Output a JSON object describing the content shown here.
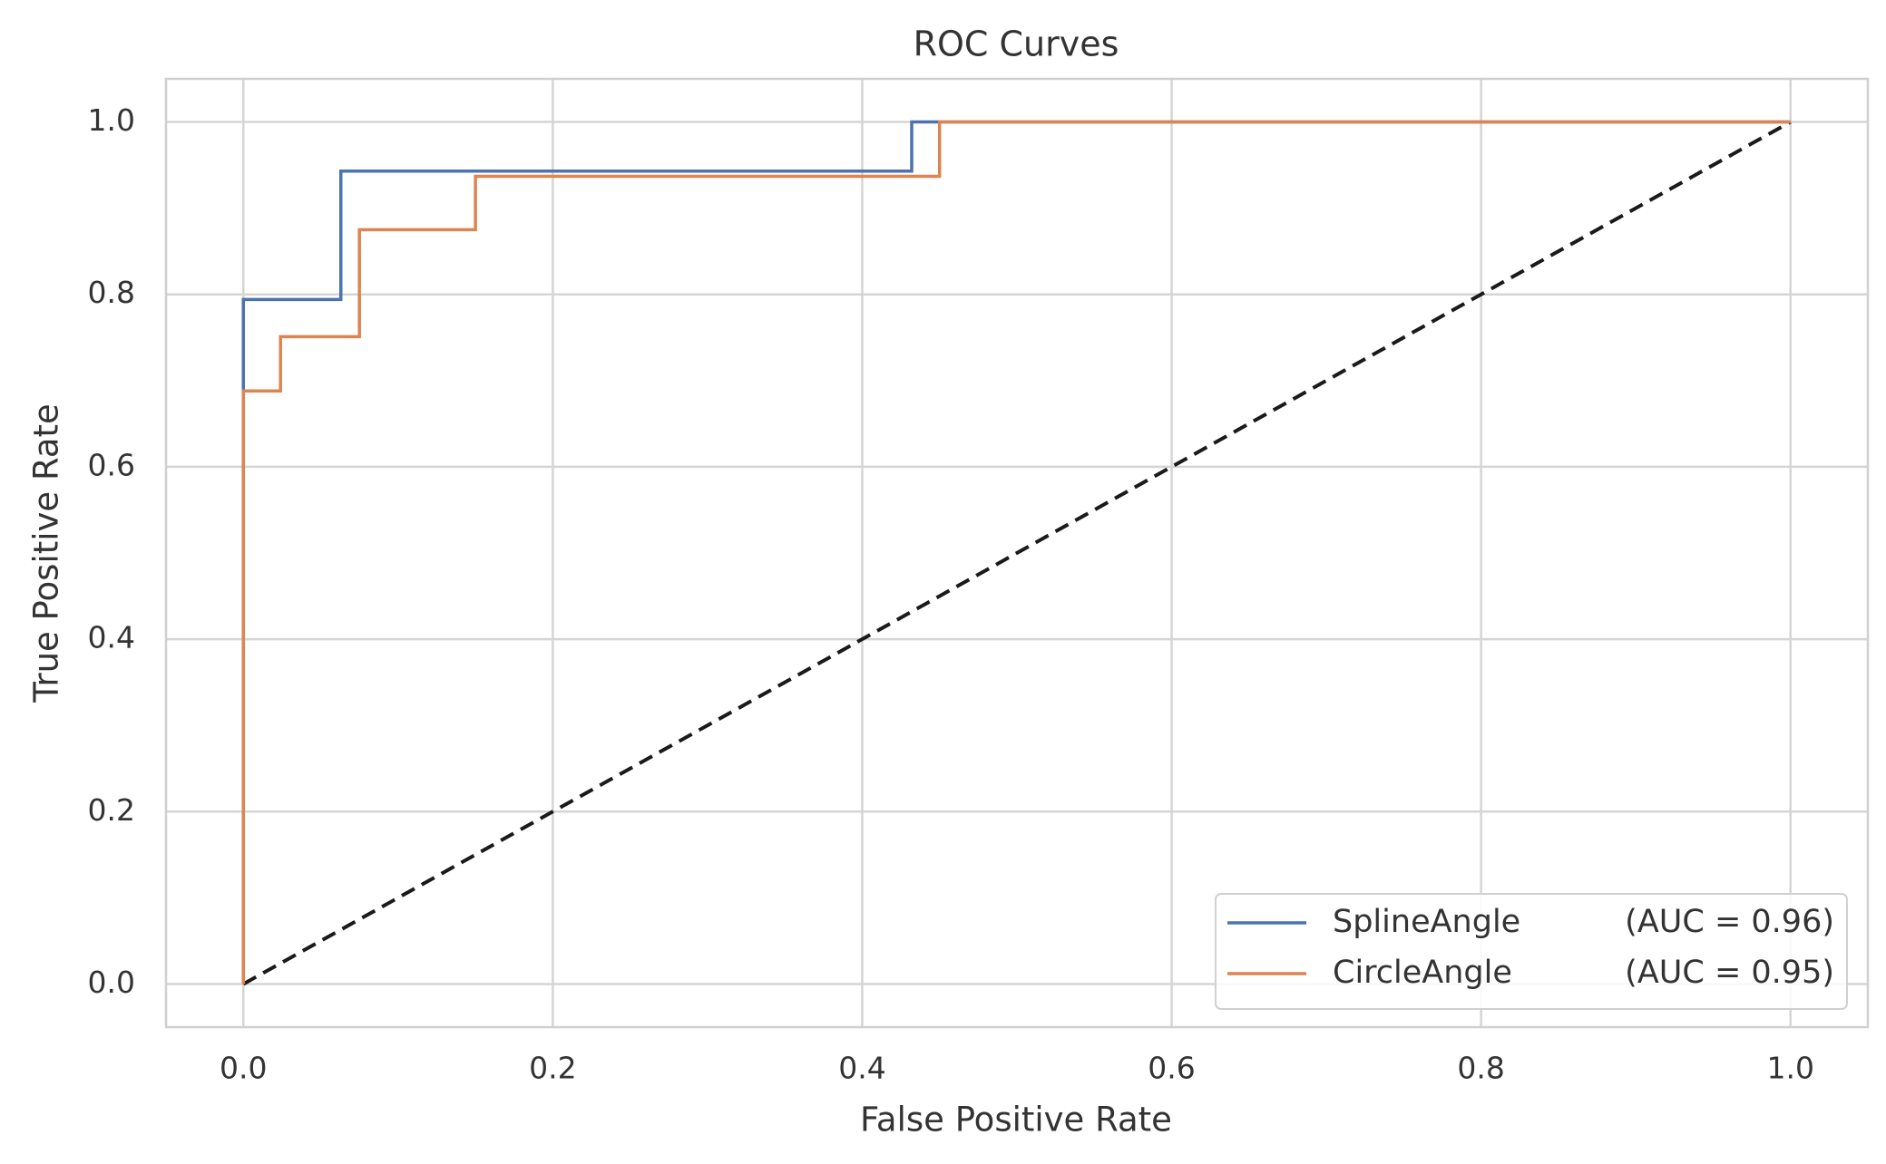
{
  "chart_data": {
    "type": "line",
    "title": "ROC Curves",
    "x_label": "False Positive Rate",
    "y_label": "True Positive Rate",
    "series": [
      {
        "name": "SplineAngle",
        "auc": "(AUC = 0.96)",
        "color": "#4c72b0",
        "step": true,
        "x": [
          0,
          0,
          0.063,
          0.063,
          0.432,
          0.432,
          1
        ],
        "values": [
          0,
          0.794,
          0.794,
          0.943,
          0.943,
          1.0,
          1.0
        ]
      },
      {
        "name": "CircleAngle",
        "auc": "(AUC = 0.95)",
        "color": "#dd8452",
        "step": true,
        "x": [
          0,
          0,
          0.024,
          0.024,
          0.075,
          0.075,
          0.15,
          0.15,
          0.45,
          0.45,
          1
        ],
        "values": [
          0,
          0.688,
          0.688,
          0.751,
          0.751,
          0.875,
          0.875,
          0.937,
          0.937,
          1.0,
          1.0
        ]
      }
    ],
    "reference_line": {
      "x": [
        0,
        1
      ],
      "values": [
        0,
        1
      ],
      "color": "#1a1a1a",
      "dashed": true
    },
    "xlim": [
      -0.05,
      1.05
    ],
    "ylim": [
      -0.05,
      1.05
    ],
    "xticks": [
      {
        "value": 0,
        "label": "0.0"
      },
      0.2,
      0.4,
      0.6,
      0.8,
      {
        "value": 1,
        "label": "1.0"
      }
    ],
    "yticks": [
      {
        "value": 0,
        "label": "0.0"
      },
      0.2,
      0.4,
      0.6,
      0.8,
      {
        "value": 1,
        "label": "1.0"
      }
    ],
    "grid": true,
    "legend_position": "lower right"
  }
}
